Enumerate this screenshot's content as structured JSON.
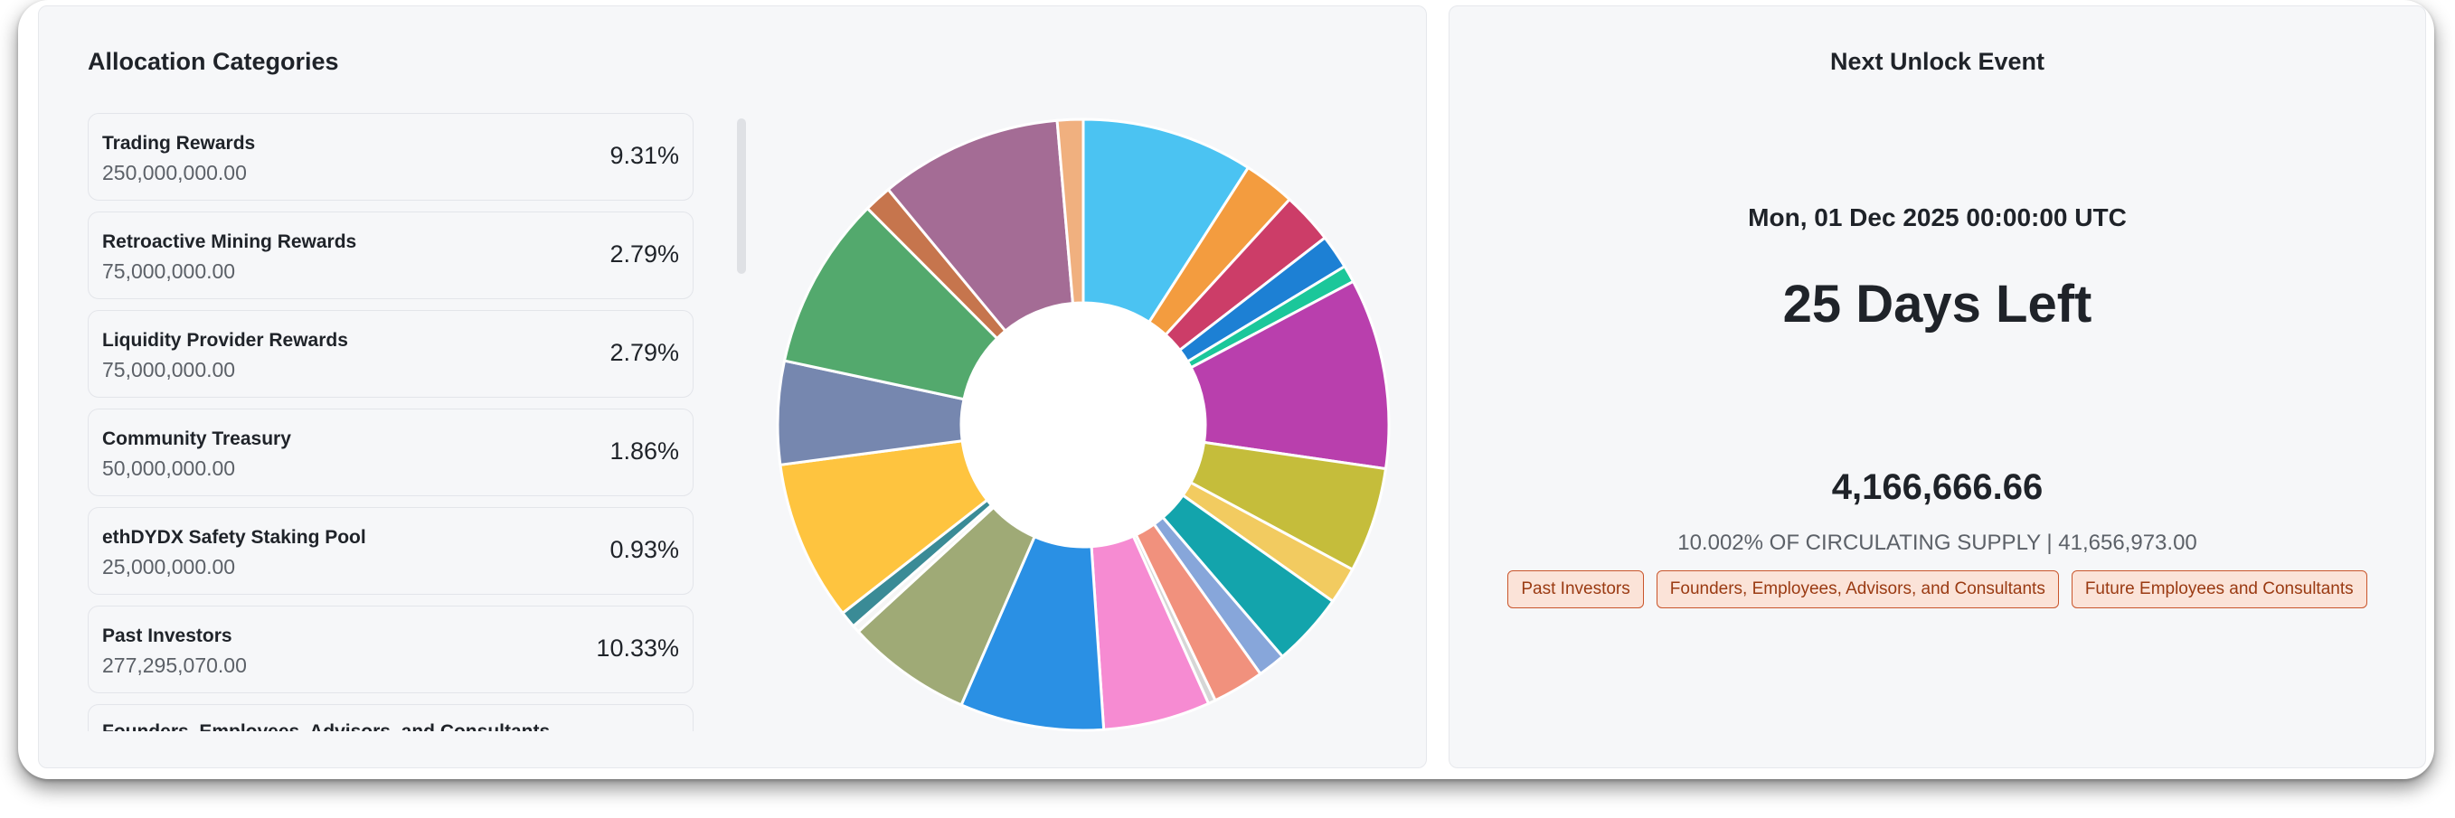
{
  "allocation": {
    "title": "Allocation Categories",
    "items": [
      {
        "name": "Trading Rewards",
        "amount": "250,000,000.00",
        "pct": "9.31%"
      },
      {
        "name": "Retroactive Mining Rewards",
        "amount": "75,000,000.00",
        "pct": "2.79%"
      },
      {
        "name": "Liquidity Provider Rewards",
        "amount": "75,000,000.00",
        "pct": "2.79%"
      },
      {
        "name": "Community Treasury",
        "amount": "50,000,000.00",
        "pct": "1.86%"
      },
      {
        "name": "ethDYDX Safety Staking Pool",
        "amount": "25,000,000.00",
        "pct": "0.93%"
      },
      {
        "name": "Past Investors",
        "amount": "277,295,070.00",
        "pct": "10.33%"
      },
      {
        "name": "Founders, Employees, Advisors, and Consultants",
        "amount": "",
        "pct": ""
      }
    ]
  },
  "chart_data": {
    "type": "pie",
    "donut": true,
    "slice_percentages": [
      9.31,
      2.79,
      2.79,
      1.86,
      0.93,
      10.33,
      5.7,
      2.0,
      4.0,
      1.5,
      2.8,
      0.4,
      5.8,
      7.8,
      6.8,
      0.4,
      0.9,
      8.7,
      5.6,
      9.4,
      1.5,
      9.9,
      1.4
    ],
    "slice_colors": [
      "#4bc3f2",
      "#f39c3f",
      "#cc3d68",
      "#1d80d4",
      "#1bc79a",
      "#b93fad",
      "#c5bd3b",
      "#f2cb60",
      "#13a4ac",
      "#87a6da",
      "#f1917d",
      "#d6d6d6",
      "#f68bd2",
      "#2a90e4",
      "#9faa76",
      "#f5f5f5",
      "#3a8b96",
      "#fec43f",
      "#7687af",
      "#53a96d",
      "#c6754d",
      "#a46c95",
      "#f0b07f"
    ]
  },
  "next_unlock": {
    "title": "Next Unlock Event",
    "date": "Mon, 01 Dec 2025 00:00:00 UTC",
    "days_left": "25 Days Left",
    "amount": "4,166,666.66",
    "supply_text": "10.002% OF CIRCULATING SUPPLY | 41,656,973.00",
    "tags": [
      "Past Investors",
      "Founders, Employees, Advisors, and Consultants",
      "Future Employees and Consultants"
    ]
  }
}
